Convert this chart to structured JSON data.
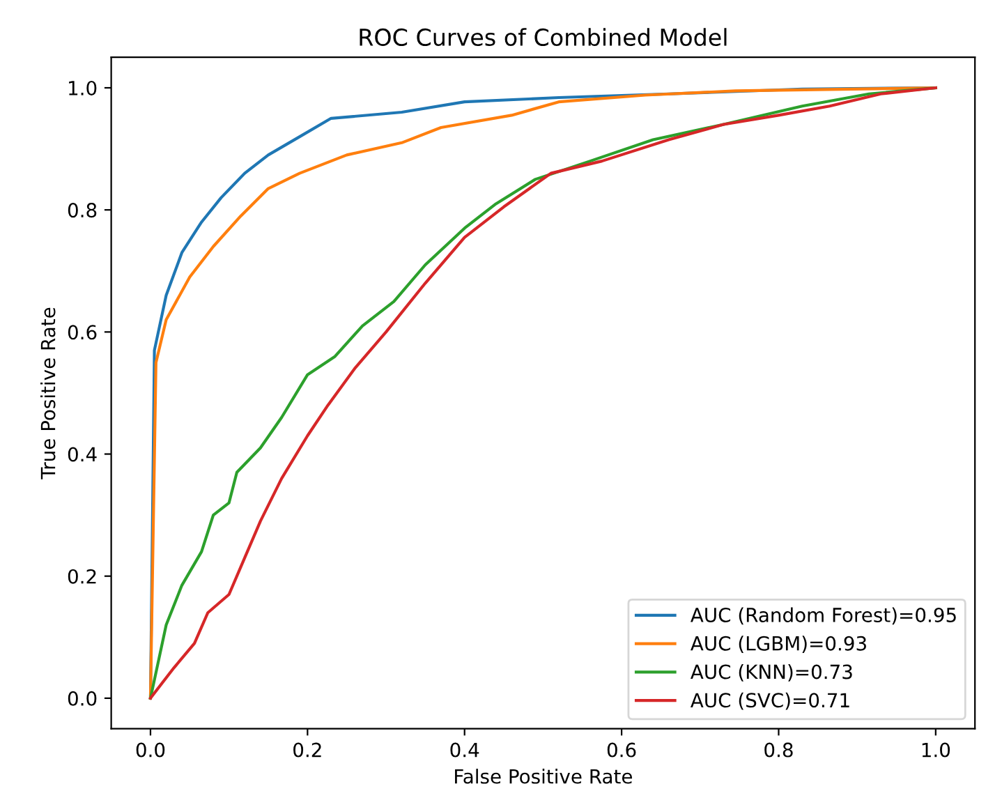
{
  "chart_data": {
    "type": "line",
    "title": "ROC Curves of Combined Model",
    "xlabel": "False Positive Rate",
    "ylabel": "True Positive Rate",
    "xlim": [
      -0.05,
      1.05
    ],
    "ylim": [
      -0.05,
      1.05
    ],
    "xticks": [
      {
        "value": 0,
        "label": "0.0"
      },
      0.2,
      0.4,
      0.6,
      0.8,
      {
        "value": 1,
        "label": "1.0"
      }
    ],
    "yticks": [
      {
        "value": 0,
        "label": "0.0"
      },
      0.2,
      0.4,
      0.6,
      0.8,
      {
        "value": 1,
        "label": "1.0"
      }
    ],
    "grid": false,
    "legend": "bottom right",
    "line_style": "solid",
    "marker": "none",
    "series": [
      {
        "name": "AUC (Random Forest)=0.95",
        "color": "#1f77b4",
        "x": [
          0,
          0.005,
          0.02,
          0.04,
          0.065,
          0.09,
          0.12,
          0.15,
          0.19,
          0.23,
          0.32,
          0.4,
          0.52,
          0.66,
          0.83,
          1
        ],
        "values": [
          0,
          0.57,
          0.66,
          0.73,
          0.78,
          0.82,
          0.86,
          0.89,
          0.92,
          0.95,
          0.96,
          0.977,
          0.984,
          0.99,
          0.998,
          1
        ]
      },
      {
        "name": "AUC (LGBM)=0.93",
        "color": "#ff7f0e",
        "x": [
          0,
          0.007,
          0.02,
          0.05,
          0.08,
          0.115,
          0.15,
          0.19,
          0.25,
          0.32,
          0.37,
          0.46,
          0.52,
          0.63,
          0.745,
          1
        ],
        "values": [
          0,
          0.55,
          0.62,
          0.69,
          0.74,
          0.79,
          0.835,
          0.86,
          0.89,
          0.91,
          0.935,
          0.955,
          0.977,
          0.988,
          0.995,
          1
        ]
      },
      {
        "name": "AUC (KNN)=0.73",
        "color": "#2ca02c",
        "x": [
          0,
          0.02,
          0.04,
          0.065,
          0.08,
          0.1,
          0.11,
          0.14,
          0.167,
          0.2,
          0.235,
          0.27,
          0.31,
          0.35,
          0.4,
          0.44,
          0.49,
          0.56,
          0.64,
          0.73,
          0.83,
          0.915,
          1
        ],
        "values": [
          0,
          0.12,
          0.185,
          0.24,
          0.3,
          0.32,
          0.37,
          0.41,
          0.46,
          0.53,
          0.56,
          0.61,
          0.65,
          0.71,
          0.77,
          0.81,
          0.85,
          0.88,
          0.915,
          0.94,
          0.97,
          0.99,
          1
        ]
      },
      {
        "name": "AUC (SVC)=0.71",
        "color": "#d62728",
        "x": [
          0,
          0.03,
          0.056,
          0.073,
          0.1,
          0.12,
          0.14,
          0.167,
          0.2,
          0.226,
          0.26,
          0.3,
          0.35,
          0.4,
          0.45,
          0.51,
          0.575,
          0.66,
          0.73,
          0.8,
          0.865,
          0.93,
          1
        ],
        "values": [
          0,
          0.05,
          0.09,
          0.14,
          0.17,
          0.23,
          0.29,
          0.36,
          0.43,
          0.48,
          0.54,
          0.6,
          0.68,
          0.755,
          0.805,
          0.86,
          0.88,
          0.915,
          0.94,
          0.955,
          0.97,
          0.99,
          1
        ]
      }
    ]
  }
}
